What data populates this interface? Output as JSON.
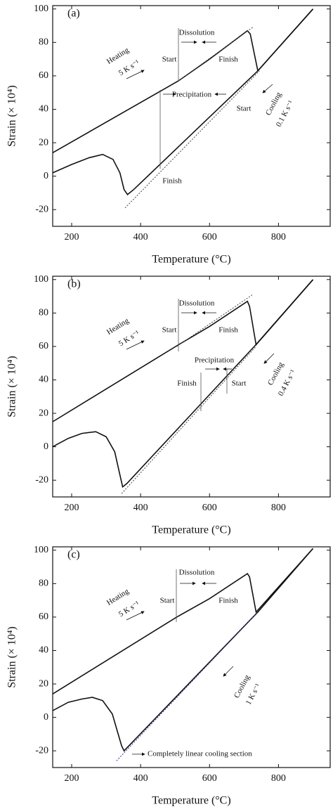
{
  "chart_data": [
    {
      "type": "line",
      "label": "(a)",
      "xlabel": "Temperature (°C)",
      "ylabel": "Strain (× 10⁴)",
      "xlim": [
        145,
        950
      ],
      "ylim": [
        -30,
        102
      ],
      "xticks": [
        200,
        400,
        600,
        800
      ],
      "yticks": [
        -20,
        0,
        20,
        40,
        60,
        80,
        100
      ],
      "annotations": [
        "Dissolution",
        "Start",
        "Finish",
        "Heating",
        "5 K s⁻¹",
        "Precipitation",
        "Start",
        "Finish",
        "Cooling",
        "0.1 K s⁻¹"
      ],
      "series": [
        {
          "color": "#111111",
          "style": "solid",
          "x": [
            145,
            510,
            600,
            710,
            718,
            740,
            900
          ],
          "values": [
            14,
            57,
            70,
            87,
            85,
            63,
            100
          ]
        },
        {
          "color": "#111111",
          "style": "solid",
          "x": [
            145,
            200,
            250,
            290,
            320,
            340,
            352,
            362,
            380,
            740,
            900
          ],
          "values": [
            2,
            7,
            11,
            13,
            10,
            2,
            -8,
            -11,
            -8,
            63,
            100
          ]
        },
        {
          "color": "#444444",
          "style": "dotted",
          "x": [
            355,
            745
          ],
          "values": [
            -19,
            63
          ]
        },
        {
          "color": "#444444",
          "style": "dotted",
          "x": [
            510,
            725
          ],
          "values": [
            57,
            89
          ]
        }
      ]
    },
    {
      "type": "line",
      "label": "(b)",
      "xlabel": "Temperature (°C)",
      "ylabel": "Strain (× 10⁴)",
      "xlim": [
        145,
        950
      ],
      "ylim": [
        -30,
        102
      ],
      "xticks": [
        200,
        400,
        600,
        800
      ],
      "yticks": [
        -20,
        0,
        20,
        40,
        60,
        80,
        100
      ],
      "annotations": [
        "Dissolution",
        "Start",
        "Finish",
        "Heating",
        "5 K s⁻¹",
        "Precipitation",
        "Finish",
        "Start",
        "Cooling",
        "0.4 K s⁻¹"
      ],
      "series": [
        {
          "color": "#111111",
          "style": "solid",
          "x": [
            145,
            510,
            600,
            710,
            716,
            735,
            900
          ],
          "values": [
            15,
            61,
            72,
            87,
            84,
            61,
            100
          ]
        },
        {
          "color": "#111111",
          "style": "solid",
          "x": [
            145,
            190,
            230,
            270,
            300,
            325,
            338,
            348,
            360,
            730,
            900
          ],
          "values": [
            0,
            5,
            8,
            9,
            6,
            -3,
            -15,
            -24,
            -22,
            60,
            100
          ]
        },
        {
          "color": "#444444",
          "style": "dotted",
          "x": [
            345,
            735
          ],
          "values": [
            -28,
            60
          ]
        },
        {
          "color": "#444444",
          "style": "dotted",
          "x": [
            505,
            725
          ],
          "values": [
            60,
            91
          ]
        }
      ]
    },
    {
      "type": "line",
      "label": "(c)",
      "xlabel": "Temperature (°C)",
      "ylabel": "Strain (× 10⁴)",
      "xlim": [
        145,
        950
      ],
      "ylim": [
        -30,
        102
      ],
      "xticks": [
        200,
        400,
        600,
        800
      ],
      "yticks": [
        -20,
        0,
        20,
        40,
        60,
        80,
        100
      ],
      "annotations": [
        "Dissolution",
        "Start",
        "Finish",
        "Heating",
        "5 K s⁻¹",
        "Cooling",
        "1 K s⁻¹",
        "Completely linear cooling section"
      ],
      "series": [
        {
          "color": "#111111",
          "style": "solid",
          "x": [
            145,
            505,
            600,
            710,
            716,
            735,
            900
          ],
          "values": [
            14,
            60,
            71,
            86,
            84,
            63,
            101
          ]
        },
        {
          "color": "#111111",
          "style": "solid",
          "x": [
            145,
            190,
            230,
            260,
            290,
            318,
            335,
            345,
            352,
            740,
            900
          ],
          "values": [
            4,
            9,
            11,
            12,
            10,
            2,
            -10,
            -17,
            -20,
            63,
            101
          ]
        },
        {
          "color": "#33339a",
          "style": "dotted",
          "x": [
            330,
            740
          ],
          "values": [
            -26,
            63
          ]
        }
      ]
    }
  ]
}
